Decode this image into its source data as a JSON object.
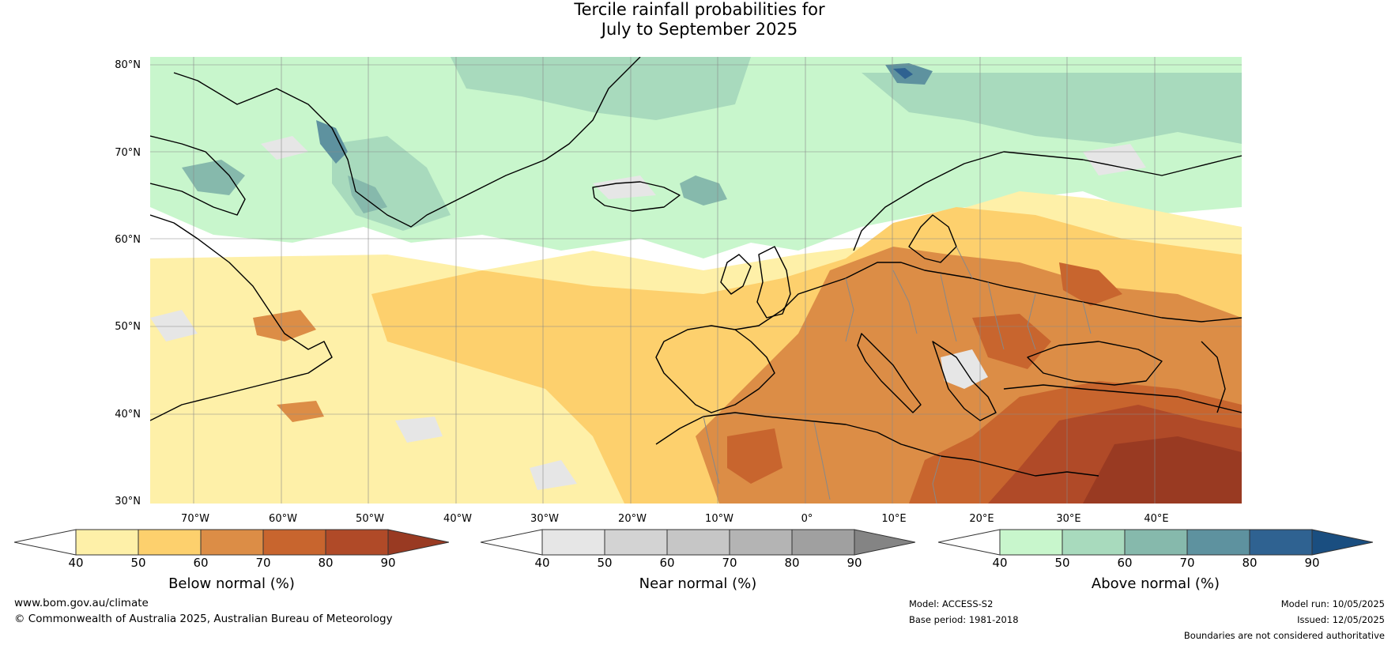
{
  "title": {
    "line1": "Tercile rainfall probabilities for",
    "line2": "July to September 2025"
  },
  "map": {
    "lat_labels": [
      "80°N",
      "70°N",
      "60°N",
      "50°N",
      "40°N",
      "30°N"
    ],
    "lon_labels": [
      "70°W",
      "60°W",
      "50°W",
      "40°W",
      "30°W",
      "20°W",
      "10°W",
      "0°",
      "10°E",
      "20°E",
      "30°E",
      "40°E"
    ],
    "extent": {
      "lon_min": -75,
      "lon_max": 50,
      "lat_min": 30,
      "lat_max": 81
    }
  },
  "colorbars": [
    {
      "label": "Below normal (%)",
      "ticks": [
        "40",
        "50",
        "60",
        "70",
        "80",
        "90"
      ],
      "colors": [
        "#fef0a8",
        "#fdd06d",
        "#dc8d46",
        "#c8652e",
        "#b04a28",
        "#993a22"
      ]
    },
    {
      "label": "Near normal (%)",
      "ticks": [
        "40",
        "50",
        "60",
        "70",
        "80",
        "90"
      ],
      "colors": [
        "#e6e6e6",
        "#d3d3d3",
        "#c6c6c6",
        "#b4b4b4",
        "#a0a0a0",
        "#848484"
      ]
    },
    {
      "label": "Above normal (%)",
      "ticks": [
        "40",
        "50",
        "60",
        "70",
        "80",
        "90"
      ],
      "colors": [
        "#c8f6cc",
        "#a8dabd",
        "#86b9ac",
        "#5e929f",
        "#2f6291",
        "#1a4e80"
      ]
    }
  ],
  "footer": {
    "website": "www.bom.gov.au/climate",
    "copyright": "© Commonwealth of Australia 2025, Australian Bureau of Meteorology",
    "model": "Model: ACCESS-S2",
    "base_period": "Base period: 1981-2018",
    "model_run": "Model run: 10/05/2025",
    "issued": "Issued: 12/05/2025",
    "disclaimer": "Boundaries are not considered authoritative"
  }
}
